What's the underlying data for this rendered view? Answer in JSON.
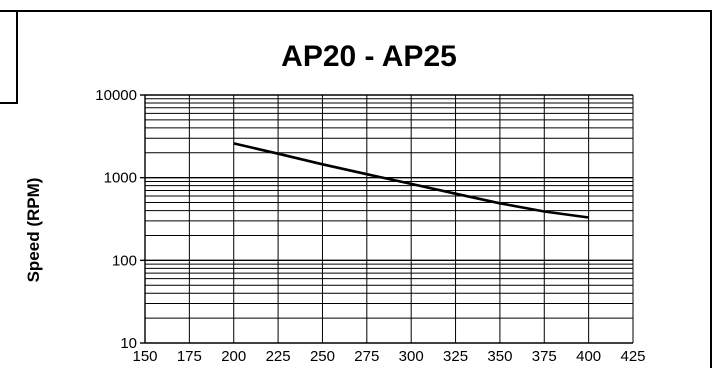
{
  "chart_data": {
    "type": "line",
    "title": "AP20 - AP25",
    "xlabel": "",
    "ylabel": "Speed (RPM)",
    "x_scale": "linear",
    "y_scale": "log",
    "xlim": [
      150,
      425
    ],
    "ylim": [
      10,
      10000
    ],
    "x_ticks": [
      150,
      175,
      200,
      225,
      250,
      275,
      300,
      325,
      350,
      375,
      400,
      425
    ],
    "x_tick_labels": [
      "150",
      "175",
      "200",
      "225",
      "250",
      "275",
      "300",
      "325",
      "350",
      "375",
      "400",
      "425"
    ],
    "y_ticks": [
      10,
      100,
      1000,
      10000
    ],
    "y_tick_labels": [
      "10",
      "100",
      "1000",
      "10000"
    ],
    "grid": true,
    "legend": "none",
    "line_color": "#000000",
    "series": [
      {
        "x": [
          200,
          225,
          250,
          275,
          300,
          325,
          350,
          375,
          400
        ],
        "y": [
          2600,
          1950,
          1450,
          1100,
          840,
          640,
          490,
          390,
          330
        ]
      }
    ]
  }
}
